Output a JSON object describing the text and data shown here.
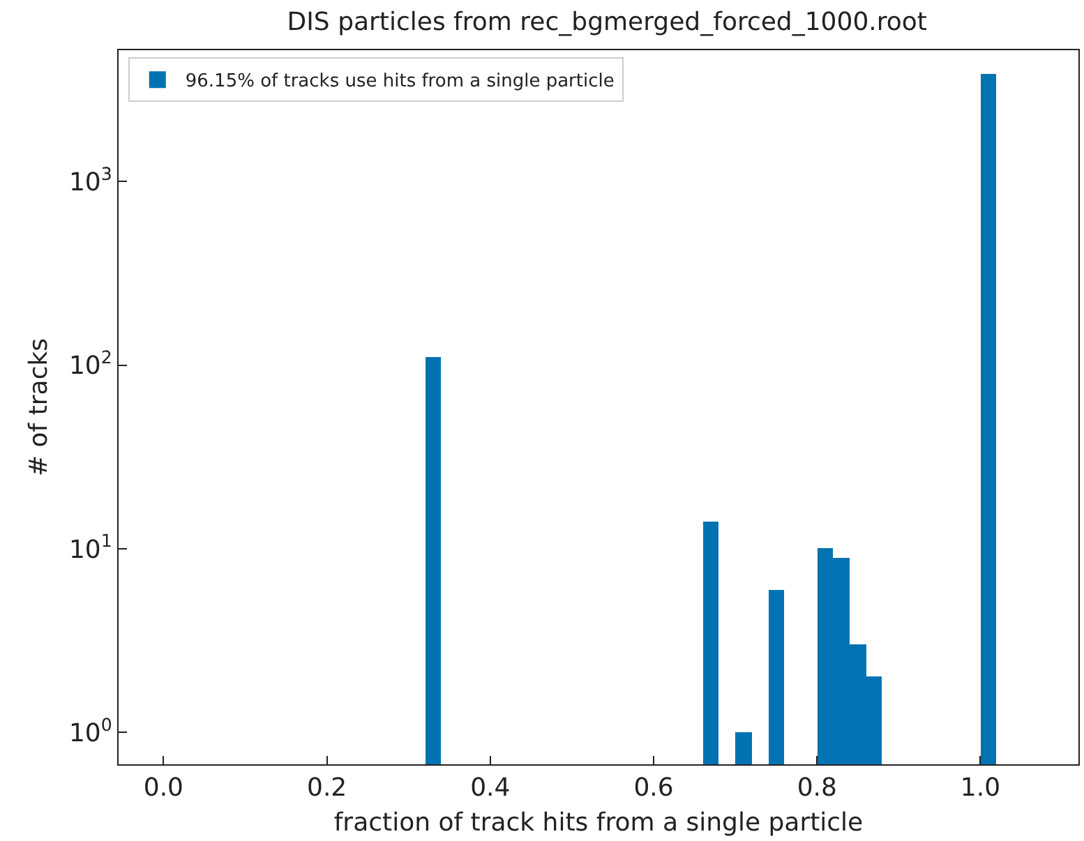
{
  "chart_data": {
    "type": "histogram",
    "title": "DIS particles from rec_bgmerged_forced_1000.root",
    "xlabel": "fraction of track hits from a single particle",
    "ylabel": "# of tracks",
    "bins": [
      0.32,
      0.34,
      0.36,
      0.38,
      0.4,
      0.42,
      0.44,
      0.46,
      0.48,
      0.5,
      0.52,
      0.54,
      0.56,
      0.58,
      0.6,
      0.62,
      0.64,
      0.66,
      0.68,
      0.7,
      0.72,
      0.74,
      0.76,
      0.78,
      0.8,
      0.82,
      0.84,
      0.86,
      0.88,
      0.9,
      0.92,
      0.94,
      0.96,
      0.98,
      1.0,
      1.02
    ],
    "series": [
      {
        "name": "96.15% of tracks use hits from a single particle",
        "color": "#0173b2",
        "values": [
          110,
          null,
          null,
          null,
          null,
          null,
          null,
          null,
          null,
          null,
          null,
          null,
          null,
          null,
          null,
          null,
          null,
          14,
          null,
          1,
          null,
          6,
          null,
          null,
          10,
          9,
          3,
          2,
          null,
          null,
          null,
          null,
          null,
          null,
          3870
        ]
      }
    ],
    "log": "y",
    "xlim": [
      -0.055,
      1.12
    ],
    "xticks": [
      {
        "value": 0,
        "label": "0.0"
      },
      0.2,
      0.4,
      0.6,
      0.8,
      {
        "value": 1,
        "label": "1.0"
      }
    ],
    "ylim": [
      0.67,
      5200
    ],
    "yticks": [
      {
        "value": 1,
        "label": "10$^{0}$"
      },
      {
        "value": 10,
        "label": "10$^{1}$"
      },
      {
        "value": 100,
        "label": "10$^{2}$"
      },
      {
        "value": 1000,
        "label": "10$^{3}$"
      }
    ],
    "legend": "top left"
  }
}
